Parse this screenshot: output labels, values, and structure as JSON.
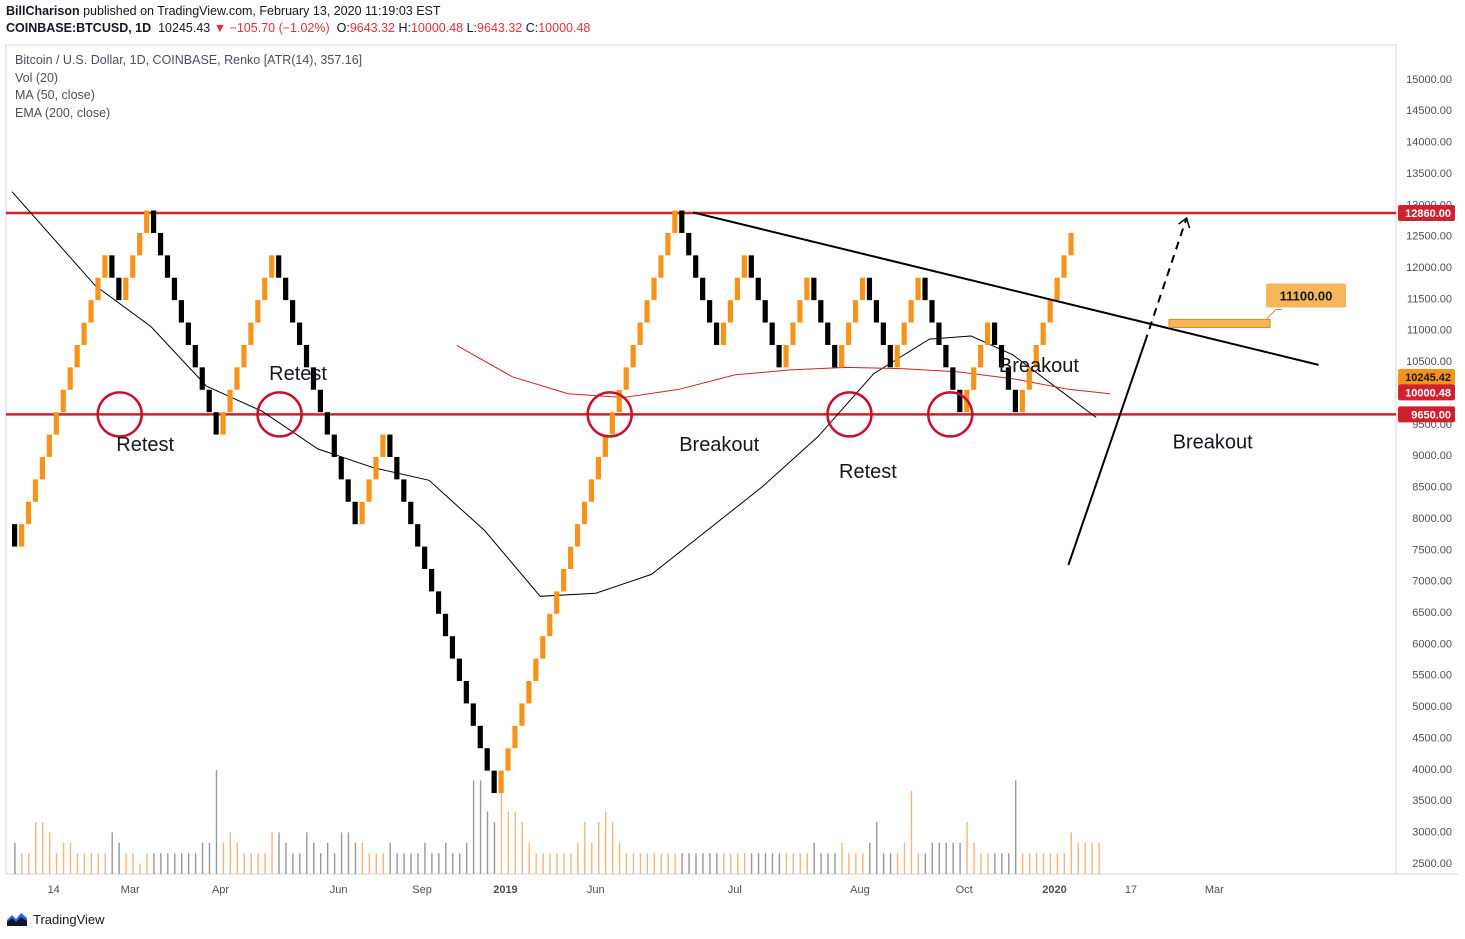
{
  "header": {
    "author": "BillCharison",
    "published": "published on TradingView.com, February 13, 2020 11:19:03 EST",
    "symbol": "COINBASE:BTCUSD, 1D",
    "price": "10245.43",
    "change": "▼ −105.70 (−1.02%)",
    "ohlc": [
      {
        "label": "O:",
        "value": "9643.32"
      },
      {
        "label": "H:",
        "value": "10000.48"
      },
      {
        "label": "L:",
        "value": "9643.32"
      },
      {
        "label": "C:",
        "value": "10000.48"
      }
    ]
  },
  "legend": [
    "Bitcoin / U.S. Dollar, 1D, COINBASE, Renko [ATR(14), 357.16]",
    "Vol (20)",
    "MA (50, close)",
    "EMA (200, close)"
  ],
  "footer": {
    "brand": "TradingView"
  },
  "colors": {
    "up": "#f7931a",
    "down": "#000000",
    "level": "#d0212f",
    "ema": "#d0212f",
    "ma": "#000000",
    "box": "#f7b65a",
    "volume": "#9598a1"
  },
  "chart_data": {
    "type": "renko",
    "y_axis": {
      "min": 2100,
      "max": 15300,
      "ticks": [
        "2500.00",
        "3000.00",
        "3500.00",
        "4000.00",
        "4500.00",
        "5000.00",
        "5500.00",
        "6000.00",
        "6500.00",
        "7000.00",
        "7500.00",
        "8000.00",
        "8500.00",
        "9000.00",
        "9500.00",
        "10000.00",
        "10500.00",
        "11000.00",
        "11500.00",
        "12000.00",
        "12500.00",
        "13000.00",
        "13500.00",
        "14000.00",
        "14500.00",
        "15000.00"
      ]
    },
    "x_axis": {
      "ticks": [
        {
          "label": "14",
          "bar": 6
        },
        {
          "label": "Mar",
          "bar": 17
        },
        {
          "label": "Apr",
          "bar": 30
        },
        {
          "label": "Jun",
          "bar": 47
        },
        {
          "label": "Sep",
          "bar": 59
        },
        {
          "label": "2019",
          "bar": 71
        },
        {
          "label": "Jun",
          "bar": 84
        },
        {
          "label": "Jul",
          "bar": 104
        },
        {
          "label": "Aug",
          "bar": 122
        },
        {
          "label": "Oct",
          "bar": 137
        },
        {
          "label": "2020",
          "bar": 150
        },
        {
          "label": "17",
          "bar": 161
        },
        {
          "label": "Mar",
          "bar": 173
        }
      ]
    },
    "brick_size": 357.16,
    "brick_dirs": "DUUUUUUUUUUUUUDDUUUUDDDDDDDDDDUUUUUUUUDDDDDDDDDDDDUUUUDDDDDDDDDDDDDDDDUUUUUUUUUUUUUUUUUUUUUUUUUUDDDDDDUUUUDDDDDUUUUDDDDUUUUDDDDUUUUDDDDDDUUUUDDDDUUUUUUUU",
    "level_lines": [
      {
        "value": 12860,
        "label": "12860.00"
      },
      {
        "value": 9650,
        "label": "9650.00"
      }
    ],
    "price_tags": [
      {
        "value": 10245.42,
        "label": "10245.42",
        "kind": "up"
      },
      {
        "value": 10000.48,
        "label": "10000.48",
        "kind": "level"
      }
    ],
    "target_box": {
      "value": 11100,
      "label": "11100.00"
    },
    "annotations": [
      {
        "text": "Retest",
        "bar": 15,
        "y": 9070
      },
      {
        "text": "Retest",
        "bar": 37,
        "y": 10200
      },
      {
        "text": "Breakout",
        "bar": 96,
        "y": 9070
      },
      {
        "text": "Retest",
        "bar": 119,
        "y": 8640
      },
      {
        "text": "Breakout",
        "bar": 142,
        "y": 10330
      },
      {
        "text": "Breakout",
        "bar": 167,
        "y": 9110
      }
    ],
    "circles": [
      {
        "bar": 15.5,
        "y": 9650
      },
      {
        "bar": 38.5,
        "y": 9650
      },
      {
        "bar": 86,
        "y": 9650
      },
      {
        "bar": 120.5,
        "y": 9650
      },
      {
        "bar": 135,
        "y": 9650
      }
    ],
    "ma_points": [
      [
        0,
        13200
      ],
      [
        12,
        11700
      ],
      [
        20,
        11050
      ],
      [
        28,
        10100
      ],
      [
        36,
        9700
      ],
      [
        44,
        9100
      ],
      [
        52,
        8800
      ],
      [
        60,
        8600
      ],
      [
        68,
        7800
      ],
      [
        76,
        6750
      ],
      [
        84,
        6800
      ],
      [
        92,
        7100
      ],
      [
        100,
        7800
      ],
      [
        108,
        8500
      ],
      [
        116,
        9300
      ],
      [
        124,
        10300
      ],
      [
        132,
        10850
      ],
      [
        138,
        10900
      ],
      [
        144,
        10600
      ],
      [
        150,
        10100
      ],
      [
        156,
        9600
      ]
    ],
    "ema_points": [
      [
        64,
        10750
      ],
      [
        72,
        10250
      ],
      [
        80,
        9980
      ],
      [
        88,
        9920
      ],
      [
        96,
        10050
      ],
      [
        104,
        10280
      ],
      [
        112,
        10360
      ],
      [
        120,
        10400
      ],
      [
        128,
        10380
      ],
      [
        136,
        10330
      ],
      [
        144,
        10220
      ],
      [
        152,
        10050
      ],
      [
        158,
        9980
      ]
    ],
    "trendline": {
      "from": [
        98,
        12870
      ],
      "to": [
        188,
        10440
      ]
    },
    "breakout_line": {
      "from": [
        152,
        7250
      ],
      "to": [
        163,
        10800
      ]
    },
    "projection": {
      "from": [
        163,
        10800
      ],
      "to": [
        169,
        12780
      ]
    },
    "volume": [
      0.3,
      0.2,
      0.2,
      0.5,
      0.5,
      0.4,
      0.2,
      0.3,
      0.3,
      0.2,
      0.2,
      0.2,
      0.2,
      0.2,
      0.4,
      0.3,
      0.2,
      0.2,
      0.1,
      0.2,
      0.2,
      0.2,
      0.2,
      0.2,
      0.2,
      0.2,
      0.2,
      0.3,
      0.3,
      1.0,
      0.3,
      0.4,
      0.3,
      0.2,
      0.2,
      0.2,
      0.2,
      0.4,
      0.4,
      0.3,
      0.2,
      0.2,
      0.4,
      0.3,
      0.2,
      0.3,
      0.2,
      0.4,
      0.4,
      0.3,
      0.3,
      0.2,
      0.2,
      0.2,
      0.3,
      0.2,
      0.2,
      0.2,
      0.2,
      0.3,
      0.2,
      0.2,
      0.3,
      0.2,
      0.2,
      0.3,
      0.9,
      0.9,
      0.6,
      0.5,
      0.9,
      0.6,
      0.6,
      0.5,
      0.3,
      0.2,
      0.2,
      0.2,
      0.2,
      0.2,
      0.2,
      0.3,
      0.5,
      0.3,
      0.5,
      0.6,
      0.5,
      0.3,
      0.2,
      0.2,
      0.2,
      0.2,
      0.2,
      0.2,
      0.2,
      0.2,
      0.2,
      0.2,
      0.2,
      0.2,
      0.2,
      0.2,
      0.2,
      0.2,
      0.2,
      0.2,
      0.2,
      0.2,
      0.2,
      0.2,
      0.2,
      0.2,
      0.2,
      0.2,
      0.2,
      0.3,
      0.2,
      0.2,
      0.2,
      0.3,
      0.2,
      0.2,
      0.2,
      0.3,
      0.5,
      0.2,
      0.2,
      0.2,
      0.3,
      0.8,
      0.2,
      0.2,
      0.3,
      0.3,
      0.3,
      0.3,
      0.3,
      0.5,
      0.3,
      0.2,
      0.2,
      0.2,
      0.2,
      0.2,
      0.9,
      0.2,
      0.2,
      0.2,
      0.2,
      0.2,
      0.2,
      0.2,
      0.4,
      0.3,
      0.3,
      0.3,
      0.3
    ]
  }
}
